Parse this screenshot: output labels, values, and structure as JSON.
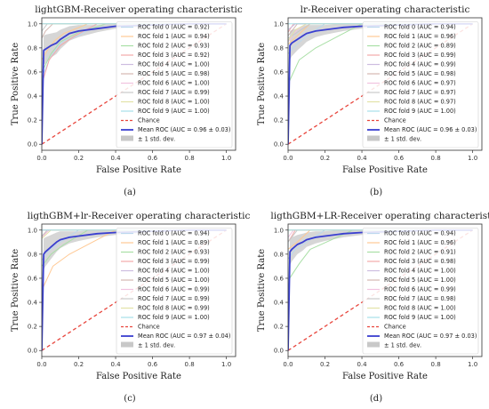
{
  "figure": {
    "captions": [
      "(a)",
      "(b)",
      "(c)",
      "(d)"
    ]
  },
  "chart_data": [
    {
      "type": "line",
      "title": "lightGBM-Receiver operating characteristic",
      "xlabel": "False Positive Rate",
      "ylabel": "True Positive Rate",
      "xlim": [
        0,
        1.05
      ],
      "ylim": [
        -0.05,
        1.05
      ],
      "xticks": [
        "0.0",
        "0.2",
        "0.4",
        "0.6",
        "0.8",
        "1.0"
      ],
      "yticks": [
        "0.0",
        "0.2",
        "0.4",
        "0.6",
        "0.8",
        "1.0"
      ],
      "legend_position": "lower-right",
      "folds": [
        {
          "name": "ROC fold 0 (AUC = 0.92)",
          "color": "#bcd8ee",
          "x": [
            0,
            0,
            0.04,
            0.08,
            0.12,
            0.2,
            0.3,
            1.0
          ],
          "y": [
            0,
            0.55,
            0.7,
            0.8,
            0.86,
            0.9,
            1.0,
            1.0
          ]
        },
        {
          "name": "ROC fold 1 (AUC = 0.94)",
          "color": "#ffc994",
          "x": [
            0,
            0,
            0.03,
            0.07,
            0.12,
            0.25,
            1.0
          ],
          "y": [
            0,
            0.7,
            0.78,
            0.86,
            0.92,
            1.0,
            1.0
          ]
        },
        {
          "name": "ROC fold 2 (AUC = 0.93)",
          "color": "#a9dfa6",
          "x": [
            0,
            0,
            0.05,
            0.1,
            0.2,
            0.35,
            1.0
          ],
          "y": [
            0,
            0.6,
            0.75,
            0.85,
            0.93,
            1.0,
            1.0
          ]
        },
        {
          "name": "ROC fold 3 (AUC = 0.92)",
          "color": "#f3a9a9",
          "x": [
            0,
            0,
            0.04,
            0.1,
            0.18,
            0.3,
            1.0
          ],
          "y": [
            0,
            0.5,
            0.7,
            0.82,
            0.9,
            1.0,
            1.0
          ]
        },
        {
          "name": "ROC fold 4 (AUC = 1.00)",
          "color": "#cdbde0",
          "x": [
            0,
            0,
            1.0
          ],
          "y": [
            0,
            1.0,
            1.0
          ]
        },
        {
          "name": "ROC fold 5 (AUC = 0.98)",
          "color": "#d4b8b2",
          "x": [
            0,
            0,
            0.02,
            0.06,
            1.0
          ],
          "y": [
            0,
            0.88,
            0.94,
            1.0,
            1.0
          ]
        },
        {
          "name": "ROC fold 6 (AUC = 1.00)",
          "color": "#f1c3e0",
          "x": [
            0,
            0,
            1.0
          ],
          "y": [
            0,
            1.0,
            1.0
          ]
        },
        {
          "name": "ROC fold 7 (AUC = 0.99)",
          "color": "#c9c9c9",
          "x": [
            0,
            0,
            0.03,
            1.0
          ],
          "y": [
            0,
            0.94,
            1.0,
            1.0
          ]
        },
        {
          "name": "ROC fold 8 (AUC = 1.00)",
          "color": "#e3e3a9",
          "x": [
            0,
            0,
            1.0
          ],
          "y": [
            0,
            1.0,
            1.0
          ]
        },
        {
          "name": "ROC fold 9 (AUC = 1.00)",
          "color": "#a6e0e8",
          "x": [
            0,
            0,
            1.0
          ],
          "y": [
            0,
            1.0,
            1.0
          ]
        }
      ],
      "chance": {
        "name": "Chance",
        "color": "#e8453c",
        "x": [
          0,
          1.0
        ],
        "y": [
          0,
          1.0
        ]
      },
      "mean": {
        "name": "Mean ROC (AUC = 0.96 ± 0.03)",
        "color": "#3a3fd0",
        "x": [
          0,
          0.01,
          0.02,
          0.05,
          0.08,
          0.1,
          0.15,
          0.2,
          0.3,
          0.4,
          0.6,
          0.8,
          1.0
        ],
        "y": [
          0,
          0.78,
          0.79,
          0.82,
          0.84,
          0.87,
          0.92,
          0.94,
          0.96,
          0.98,
          0.99,
          1.0,
          1.0
        ],
        "std": [
          0,
          0.12,
          0.12,
          0.1,
          0.09,
          0.08,
          0.06,
          0.05,
          0.03,
          0.02,
          0.01,
          0,
          0
        ]
      },
      "std_band": {
        "name": "± 1 std. dev.",
        "color": "#c8c8c8"
      }
    },
    {
      "type": "line",
      "title": "lr-Receiver operating characteristic",
      "xlabel": "False Positive Rate",
      "ylabel": "True Positive Rate",
      "xlim": [
        0,
        1.05
      ],
      "ylim": [
        -0.05,
        1.05
      ],
      "xticks": [
        "0.0",
        "0.2",
        "0.4",
        "0.6",
        "0.8",
        "1.0"
      ],
      "yticks": [
        "0.0",
        "0.2",
        "0.4",
        "0.6",
        "0.8",
        "1.0"
      ],
      "legend_position": "lower-right",
      "folds": [
        {
          "name": "ROC fold 0 (AUC = 0.94)",
          "color": "#bcd8ee",
          "x": [
            0,
            0,
            0.04,
            0.1,
            0.2,
            1.0
          ],
          "y": [
            0,
            0.75,
            0.82,
            0.9,
            1.0,
            1.0
          ]
        },
        {
          "name": "ROC fold 1 (AUC = 0.96)",
          "color": "#ffc994",
          "x": [
            0,
            0,
            0.05,
            0.12,
            1.0
          ],
          "y": [
            0,
            0.83,
            0.9,
            1.0,
            1.0
          ]
        },
        {
          "name": "ROC fold 2 (AUC = 0.89)",
          "color": "#a9dfa6",
          "x": [
            0,
            0,
            0.06,
            0.15,
            0.3,
            0.4,
            1.0
          ],
          "y": [
            0,
            0.5,
            0.7,
            0.8,
            0.92,
            1.0,
            1.0
          ]
        },
        {
          "name": "ROC fold 3 (AUC = 0.99)",
          "color": "#f3a9a9",
          "x": [
            0,
            0,
            0.03,
            1.0
          ],
          "y": [
            0,
            0.93,
            1.0,
            1.0
          ]
        },
        {
          "name": "ROC fold 4 (AUC = 0.99)",
          "color": "#cdbde0",
          "x": [
            0,
            0,
            0.04,
            1.0
          ],
          "y": [
            0,
            0.95,
            1.0,
            1.0
          ]
        },
        {
          "name": "ROC fold 5 (AUC = 0.98)",
          "color": "#d4b8b2",
          "x": [
            0,
            0,
            0.05,
            1.0
          ],
          "y": [
            0,
            0.9,
            1.0,
            1.0
          ]
        },
        {
          "name": "ROC fold 6 (AUC = 0.97)",
          "color": "#f1c3e0",
          "x": [
            0,
            0,
            0.05,
            0.1,
            1.0
          ],
          "y": [
            0,
            0.85,
            0.95,
            1.0,
            1.0
          ]
        },
        {
          "name": "ROC fold 7 (AUC = 0.97)",
          "color": "#c9c9c9",
          "x": [
            0,
            0,
            0.06,
            0.12,
            1.0
          ],
          "y": [
            0,
            0.88,
            0.94,
            1.0,
            1.0
          ]
        },
        {
          "name": "ROC fold 8 (AUC = 0.97)",
          "color": "#e3e3a9",
          "x": [
            0,
            0,
            0.04,
            0.1,
            1.0
          ],
          "y": [
            0,
            0.86,
            0.95,
            1.0,
            1.0
          ]
        },
        {
          "name": "ROC fold 9 (AUC = 1.00)",
          "color": "#a6e0e8",
          "x": [
            0,
            0,
            1.0
          ],
          "y": [
            0,
            1.0,
            1.0
          ]
        }
      ],
      "chance": {
        "name": "Chance",
        "color": "#e8453c",
        "x": [
          0,
          1.0
        ],
        "y": [
          0,
          1.0
        ]
      },
      "mean": {
        "name": "Mean ROC (AUC = 0.96 ± 0.03)",
        "color": "#3a3fd0",
        "x": [
          0,
          0.01,
          0.02,
          0.05,
          0.08,
          0.1,
          0.15,
          0.2,
          0.3,
          0.4,
          0.6,
          0.8,
          1.0
        ],
        "y": [
          0,
          0.82,
          0.84,
          0.87,
          0.9,
          0.92,
          0.94,
          0.95,
          0.97,
          0.98,
          0.99,
          1.0,
          1.0
        ],
        "std": [
          0,
          0.12,
          0.11,
          0.09,
          0.08,
          0.07,
          0.05,
          0.04,
          0.03,
          0.02,
          0.01,
          0,
          0
        ]
      },
      "std_band": {
        "name": "± 1 std. dev.",
        "color": "#c8c8c8"
      }
    },
    {
      "type": "line",
      "title": "ligthGBM+lr-Receiver operating characteristic",
      "xlabel": "False Positive Rate",
      "ylabel": "True Positive Rate",
      "xlim": [
        0,
        1.05
      ],
      "ylim": [
        -0.05,
        1.05
      ],
      "xticks": [
        "0.0",
        "0.2",
        "0.4",
        "0.6",
        "0.8",
        "1.0"
      ],
      "yticks": [
        "0.0",
        "0.2",
        "0.4",
        "0.6",
        "0.8",
        "1.0"
      ],
      "legend_position": "lower-right",
      "folds": [
        {
          "name": "ROC fold 0 (AUC = 0.94)",
          "color": "#bcd8ee",
          "x": [
            0,
            0,
            0.04,
            0.1,
            0.2,
            1.0
          ],
          "y": [
            0,
            0.75,
            0.83,
            0.9,
            1.0,
            1.0
          ]
        },
        {
          "name": "ROC fold 1 (AUC = 0.89)",
          "color": "#ffc994",
          "x": [
            0,
            0,
            0.06,
            0.15,
            0.3,
            0.4,
            1.0
          ],
          "y": [
            0,
            0.5,
            0.7,
            0.8,
            0.92,
            1.0,
            1.0
          ]
        },
        {
          "name": "ROC fold 2 (AUC = 0.93)",
          "color": "#a9dfa6",
          "x": [
            0,
            0,
            0.05,
            0.12,
            0.25,
            1.0
          ],
          "y": [
            0,
            0.7,
            0.8,
            0.88,
            1.0,
            1.0
          ]
        },
        {
          "name": "ROC fold 3 (AUC = 0.99)",
          "color": "#f3a9a9",
          "x": [
            0,
            0,
            0.03,
            1.0
          ],
          "y": [
            0,
            0.94,
            1.0,
            1.0
          ]
        },
        {
          "name": "ROC fold 4 (AUC = 1.00)",
          "color": "#cdbde0",
          "x": [
            0,
            0,
            1.0
          ],
          "y": [
            0,
            1.0,
            1.0
          ]
        },
        {
          "name": "ROC fold 5 (AUC = 1.00)",
          "color": "#d4b8b2",
          "x": [
            0,
            0,
            1.0
          ],
          "y": [
            0,
            1.0,
            1.0
          ]
        },
        {
          "name": "ROC fold 6 (AUC = 0.99)",
          "color": "#f1c3e0",
          "x": [
            0,
            0,
            0.04,
            1.0
          ],
          "y": [
            0,
            0.94,
            1.0,
            1.0
          ]
        },
        {
          "name": "ROC fold 7 (AUC = 0.99)",
          "color": "#c9c9c9",
          "x": [
            0,
            0,
            0.03,
            1.0
          ],
          "y": [
            0,
            0.95,
            1.0,
            1.0
          ]
        },
        {
          "name": "ROC fold 8 (AUC = 0.99)",
          "color": "#e3e3a9",
          "x": [
            0,
            0,
            0.05,
            1.0
          ],
          "y": [
            0,
            0.93,
            1.0,
            1.0
          ]
        },
        {
          "name": "ROC fold 9 (AUC = 1.00)",
          "color": "#a6e0e8",
          "x": [
            0,
            0,
            1.0
          ],
          "y": [
            0,
            1.0,
            1.0
          ]
        }
      ],
      "chance": {
        "name": "Chance",
        "color": "#e8453c",
        "x": [
          0,
          1.0
        ],
        "y": [
          0,
          1.0
        ]
      },
      "mean": {
        "name": "Mean ROC (AUC = 0.97 ± 0.04)",
        "color": "#3a3fd0",
        "x": [
          0,
          0.01,
          0.02,
          0.05,
          0.08,
          0.1,
          0.15,
          0.2,
          0.3,
          0.4,
          0.6,
          0.8,
          1.0
        ],
        "y": [
          0,
          0.8,
          0.82,
          0.86,
          0.9,
          0.92,
          0.94,
          0.95,
          0.97,
          0.98,
          0.99,
          1.0,
          1.0
        ],
        "std": [
          0,
          0.13,
          0.12,
          0.1,
          0.08,
          0.07,
          0.05,
          0.04,
          0.03,
          0.02,
          0.01,
          0,
          0
        ]
      },
      "std_band": {
        "name": "± 1 std. dev.",
        "color": "#c8c8c8"
      }
    },
    {
      "type": "line",
      "title": "ligthGBM+LR-Receiver operating characteristic",
      "xlabel": "False Positive Rate",
      "ylabel": "True Positive Rate",
      "xlim": [
        0,
        1.05
      ],
      "ylim": [
        -0.05,
        1.05
      ],
      "xticks": [
        "0.0",
        "0.2",
        "0.4",
        "0.6",
        "0.8",
        "1.0"
      ],
      "yticks": [
        "0.0",
        "0.2",
        "0.4",
        "0.6",
        "0.8",
        "1.0"
      ],
      "legend_position": "lower-right",
      "folds": [
        {
          "name": "ROC fold 0 (AUC = 0.94)",
          "color": "#bcd8ee",
          "x": [
            0,
            0,
            0.04,
            0.1,
            0.2,
            1.0
          ],
          "y": [
            0,
            0.76,
            0.84,
            0.9,
            1.0,
            1.0
          ]
        },
        {
          "name": "ROC fold 1 (AUC = 0.96)",
          "color": "#ffc994",
          "x": [
            0,
            0,
            0.05,
            0.12,
            1.0
          ],
          "y": [
            0,
            0.84,
            0.9,
            1.0,
            1.0
          ]
        },
        {
          "name": "ROC fold 2 (AUC = 0.91)",
          "color": "#a9dfa6",
          "x": [
            0,
            0,
            0.06,
            0.12,
            0.25,
            0.35,
            1.0
          ],
          "y": [
            0,
            0.58,
            0.72,
            0.84,
            0.93,
            1.0,
            1.0
          ]
        },
        {
          "name": "ROC fold 3 (AUC = 0.98)",
          "color": "#f3a9a9",
          "x": [
            0,
            0,
            0.04,
            1.0
          ],
          "y": [
            0,
            0.9,
            1.0,
            1.0
          ]
        },
        {
          "name": "ROC fold 4 (AUC = 1.00)",
          "color": "#cdbde0",
          "x": [
            0,
            0,
            1.0
          ],
          "y": [
            0,
            1.0,
            1.0
          ]
        },
        {
          "name": "ROC fold 5 (AUC = 1.00)",
          "color": "#d4b8b2",
          "x": [
            0,
            0,
            1.0
          ],
          "y": [
            0,
            1.0,
            1.0
          ]
        },
        {
          "name": "ROC fold 6 (AUC = 0.99)",
          "color": "#f1c3e0",
          "x": [
            0,
            0,
            0.03,
            1.0
          ],
          "y": [
            0,
            0.94,
            1.0,
            1.0
          ]
        },
        {
          "name": "ROC fold 7 (AUC = 0.98)",
          "color": "#c9c9c9",
          "x": [
            0,
            0,
            0.05,
            1.0
          ],
          "y": [
            0,
            0.9,
            1.0,
            1.0
          ]
        },
        {
          "name": "ROC fold 8 (AUC = 1.00)",
          "color": "#e3e3a9",
          "x": [
            0,
            0,
            1.0
          ],
          "y": [
            0,
            1.0,
            1.0
          ]
        },
        {
          "name": "ROC fold 9 (AUC = 1.00)",
          "color": "#a6e0e8",
          "x": [
            0,
            0,
            1.0
          ],
          "y": [
            0,
            1.0,
            1.0
          ]
        }
      ],
      "chance": {
        "name": "Chance",
        "color": "#e8453c",
        "x": [
          0,
          1.0
        ],
        "y": [
          0,
          1.0
        ]
      },
      "mean": {
        "name": "Mean ROC (AUC = 0.97 ± 0.03)",
        "color": "#3a3fd0",
        "x": [
          0,
          0.01,
          0.02,
          0.05,
          0.08,
          0.1,
          0.15,
          0.2,
          0.3,
          0.4,
          0.6,
          0.8,
          1.0
        ],
        "y": [
          0,
          0.82,
          0.84,
          0.88,
          0.9,
          0.92,
          0.94,
          0.95,
          0.97,
          0.98,
          0.99,
          1.0,
          1.0
        ],
        "std": [
          0,
          0.11,
          0.1,
          0.08,
          0.07,
          0.06,
          0.05,
          0.04,
          0.03,
          0.02,
          0.01,
          0,
          0
        ]
      },
      "std_band": {
        "name": "± 1 std. dev.",
        "color": "#c8c8c8"
      }
    }
  ]
}
